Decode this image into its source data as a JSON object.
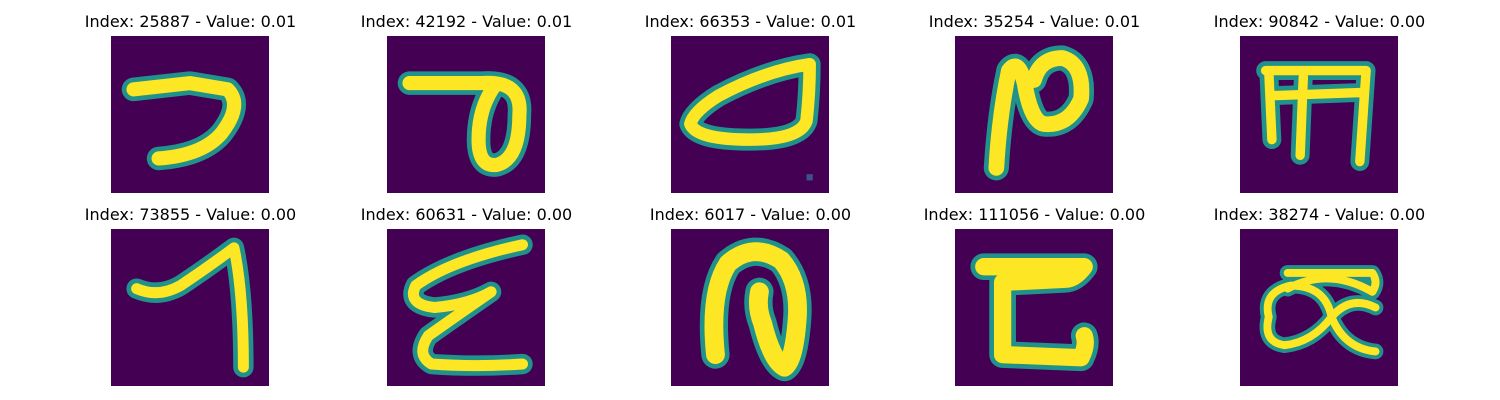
{
  "figure": {
    "panels": [
      {
        "label": "Index: 25887 - Value: 0.01",
        "glyph": "glyph-stroke-7"
      },
      {
        "label": "Index: 42192 - Value: 0.01",
        "glyph": "glyph-loop-p"
      },
      {
        "label": "Index: 66353 - Value: 0.01",
        "glyph": "glyph-triangle-loop"
      },
      {
        "label": "Index: 35254 - Value: 0.01",
        "glyph": "glyph-loop-n"
      },
      {
        "label": "Index: 90842 - Value: 0.00",
        "glyph": "glyph-comb-m"
      },
      {
        "label": "Index: 73855 - Value: 0.00",
        "glyph": "glyph-hook-1"
      },
      {
        "label": "Index: 60631 - Value: 0.00",
        "glyph": "glyph-zigzag-e"
      },
      {
        "label": "Index: 6017 - Value: 0.00",
        "glyph": "glyph-arch-n"
      },
      {
        "label": "Index: 111056 - Value: 0.00",
        "glyph": "glyph-z-shape"
      },
      {
        "label": "Index: 38274 - Value: 0.00",
        "glyph": "glyph-loops-alpha"
      }
    ],
    "colors": {
      "background": "#440154",
      "edge": "#21918c",
      "stroke": "#fde725"
    }
  }
}
